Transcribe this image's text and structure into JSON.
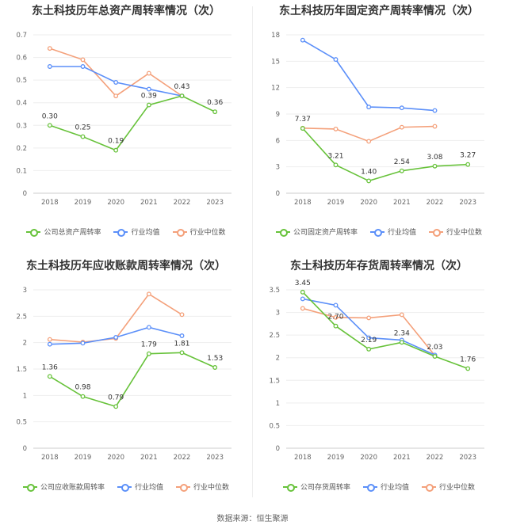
{
  "footer": "数据来源：恒生聚源",
  "colors": {
    "company": "#67c23a",
    "avg": "#5b8ff9",
    "median": "#f4a07a"
  },
  "chart_data": [
    {
      "type": "line",
      "title": "东土科技历年总资产周转率情况（次）",
      "x": [
        "2018",
        "2019",
        "2020",
        "2021",
        "2022",
        "2023"
      ],
      "ylim": [
        0,
        0.7
      ],
      "yticks": [
        "0",
        "0.1",
        "0.2",
        "0.3",
        "0.4",
        "0.5",
        "0.6",
        "0.7"
      ],
      "series": [
        {
          "name": "公司总资产周转率",
          "values": [
            0.3,
            0.25,
            0.19,
            0.39,
            0.43,
            0.36
          ],
          "labels": [
            "0.30",
            "0.25",
            "0.19",
            "0.39",
            "0.43",
            "0.36"
          ]
        },
        {
          "name": "行业均值",
          "values": [
            0.56,
            0.56,
            0.49,
            0.46,
            0.43,
            null
          ]
        },
        {
          "name": "行业中位数",
          "values": [
            0.64,
            0.59,
            0.43,
            0.53,
            0.43,
            null
          ]
        }
      ]
    },
    {
      "type": "line",
      "title": "东土科技历年固定资产周转率情况（次）",
      "x": [
        "2018",
        "2019",
        "2020",
        "2021",
        "2022",
        "2023"
      ],
      "ylim": [
        0,
        18
      ],
      "yticks": [
        "0",
        "3",
        "6",
        "9",
        "12",
        "15",
        "18"
      ],
      "series": [
        {
          "name": "公司固定资产周转率",
          "values": [
            7.37,
            3.21,
            1.4,
            2.54,
            3.08,
            3.27
          ],
          "labels": [
            "7.37",
            "3.21",
            "1.40",
            "2.54",
            "3.08",
            "3.27"
          ]
        },
        {
          "name": "行业均值",
          "values": [
            17.4,
            15.2,
            9.8,
            9.7,
            9.4,
            null
          ]
        },
        {
          "name": "行业中位数",
          "values": [
            7.4,
            7.3,
            5.9,
            7.5,
            7.6,
            null
          ]
        }
      ]
    },
    {
      "type": "line",
      "title": "东土科技历年应收账款周转率情况（次）",
      "x": [
        "2018",
        "2019",
        "2020",
        "2021",
        "2022",
        "2023"
      ],
      "ylim": [
        0,
        3
      ],
      "yticks": [
        "0",
        "0.5",
        "1",
        "1.5",
        "2",
        "2.5",
        "3"
      ],
      "series": [
        {
          "name": "公司应收账款周转率",
          "values": [
            1.36,
            0.98,
            0.79,
            1.79,
            1.81,
            1.53
          ],
          "labels": [
            "1.36",
            "0.98",
            "0.79",
            "1.79",
            "1.81",
            "1.53"
          ]
        },
        {
          "name": "行业均值",
          "values": [
            1.97,
            1.99,
            2.1,
            2.29,
            2.13,
            null
          ]
        },
        {
          "name": "行业中位数",
          "values": [
            2.06,
            2.01,
            2.08,
            2.92,
            2.53,
            null
          ]
        }
      ]
    },
    {
      "type": "line",
      "title": "东土科技历年存货周转率情况（次）",
      "x": [
        "2018",
        "2019",
        "2020",
        "2021",
        "2022",
        "2023"
      ],
      "ylim": [
        0,
        3.5
      ],
      "yticks": [
        "0",
        "0.5",
        "1",
        "1.5",
        "2",
        "2.5",
        "3",
        "3.5"
      ],
      "series": [
        {
          "name": "公司存货周转率",
          "values": [
            3.45,
            2.7,
            2.19,
            2.34,
            2.03,
            1.76
          ],
          "labels": [
            "3.45",
            "2.70",
            "2.19",
            "2.34",
            "2.03",
            "1.76"
          ]
        },
        {
          "name": "行业均值",
          "values": [
            3.3,
            3.16,
            2.44,
            2.39,
            2.06,
            null
          ]
        },
        {
          "name": "行业中位数",
          "values": [
            3.09,
            2.89,
            2.88,
            2.95,
            2.05,
            null
          ]
        }
      ]
    }
  ]
}
